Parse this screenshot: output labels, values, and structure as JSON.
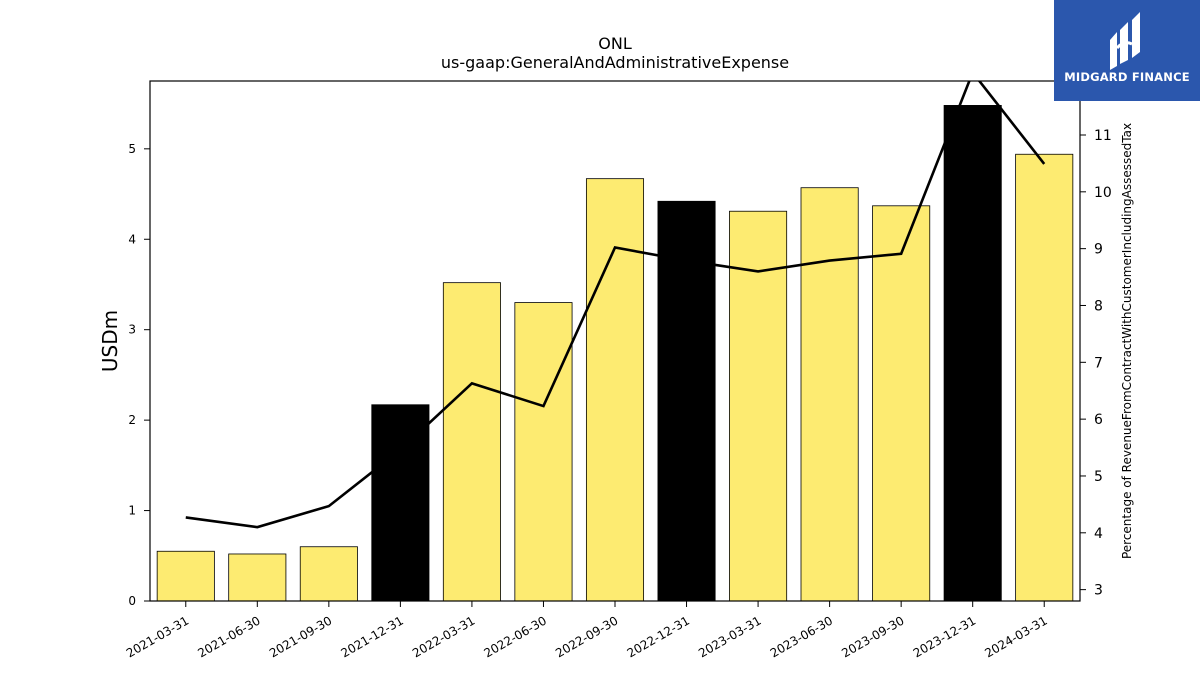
{
  "brand": {
    "name": "MIDGARD FINANCE",
    "background_color": "#2b57ad",
    "text_color": "#ffffff"
  },
  "chart_data": {
    "type": "bar",
    "title": "ONL",
    "subtitle": "us-gaap:GeneralAndAdministrativeExpense",
    "ylabel": "USDm",
    "y2label": "Percentage of RevenueFromContractWithCustomerIncludingAssessedTax",
    "categories": [
      "2021-03-31",
      "2021-06-30",
      "2021-09-30",
      "2021-12-31",
      "2022-03-31",
      "2022-06-30",
      "2022-09-30",
      "2022-12-31",
      "2023-03-31",
      "2023-06-30",
      "2023-09-30",
      "2023-12-31",
      "2024-03-31"
    ],
    "values": [
      0.55,
      0.52,
      0.6,
      2.17,
      3.52,
      3.3,
      4.67,
      4.42,
      4.31,
      4.57,
      4.37,
      5.48,
      4.94
    ],
    "bar_colors": [
      "#fdeb71",
      "#fdeb71",
      "#fdeb71",
      "#000000",
      "#fdeb71",
      "#fdeb71",
      "#fdeb71",
      "#000000",
      "#fdeb71",
      "#fdeb71",
      "#fdeb71",
      "#000000",
      "#fdeb71"
    ],
    "line_series": {
      "values": [
        4.27,
        4.1,
        4.47,
        5.46,
        6.63,
        6.23,
        9.02,
        8.79,
        8.6,
        8.79,
        8.91,
        12.1,
        10.49
      ],
      "color": "#000000"
    },
    "ylim": [
      0,
      5.75
    ],
    "y2lim": [
      2.8,
      11.95
    ],
    "yticks": [
      0,
      1,
      2,
      3,
      4,
      5
    ],
    "y2ticks": [
      3,
      4,
      5,
      6,
      7,
      8,
      9,
      10,
      11
    ],
    "grid": false
  }
}
